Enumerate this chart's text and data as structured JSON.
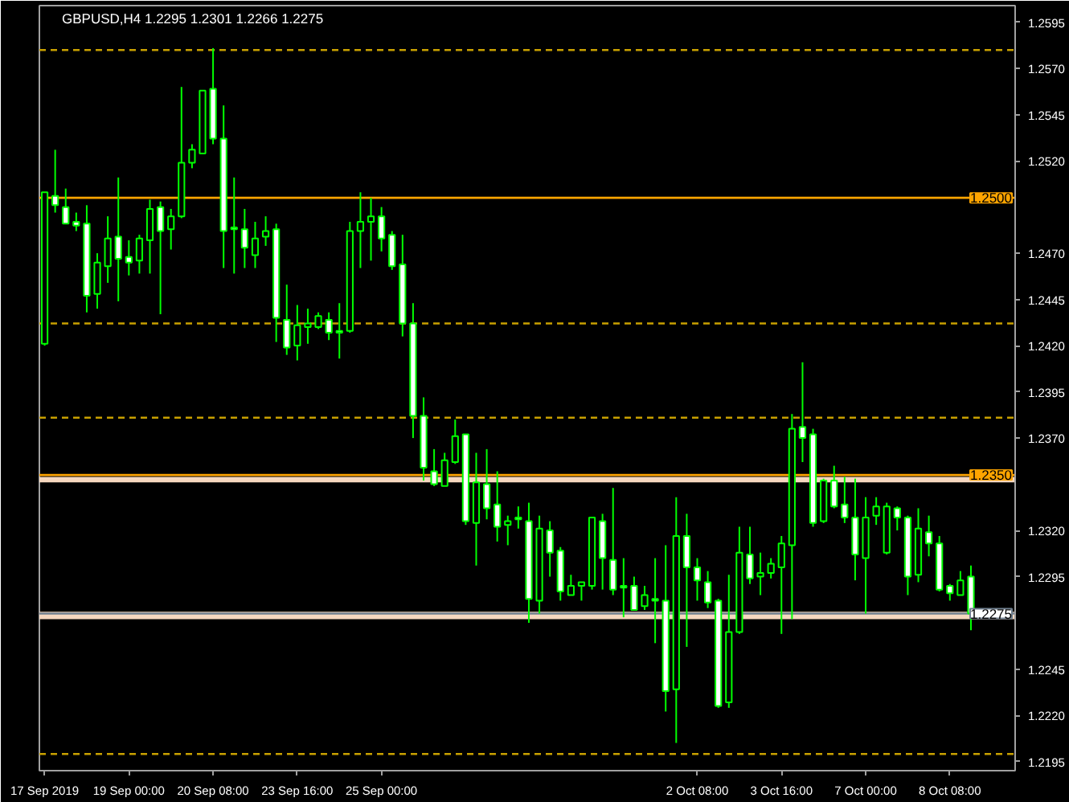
{
  "chart_data": {
    "type": "candlestick",
    "title": "GBPUSD,H4 1.2295 1.2301 1.2266 1.2275",
    "categories": [
      "17 Sep 2019",
      null,
      null,
      null,
      null,
      null,
      null,
      null,
      "19 Sep 00:00",
      null,
      null,
      null,
      null,
      null,
      null,
      null,
      "20 Sep 08:00",
      null,
      null,
      null,
      null,
      null,
      null,
      null,
      "23 Sep 16:00",
      null,
      null,
      null,
      null,
      null,
      null,
      null,
      "25 Sep 00:00",
      null,
      null,
      null,
      null,
      null,
      null,
      null,
      null,
      null,
      null,
      null,
      null,
      null,
      null,
      null,
      null,
      null,
      null,
      null,
      null,
      null,
      null,
      null,
      null,
      null,
      null,
      null,
      null,
      null,
      "2 Oct 08:00",
      null,
      null,
      null,
      null,
      null,
      null,
      null,
      "3 Oct 16:00",
      null,
      null,
      null,
      null,
      null,
      null,
      null,
      "7 Oct 00:00",
      null,
      null,
      null,
      null,
      null,
      null,
      null,
      "8 Oct 08:00",
      null,
      null
    ],
    "ohlc": [
      [
        1.2421,
        1.2503,
        1.242,
        1.2503
      ],
      [
        1.2501,
        1.2526,
        1.2492,
        1.2496
      ],
      [
        1.2495,
        1.2505,
        1.2486,
        1.2486
      ],
      [
        1.2487,
        1.2492,
        1.2482,
        1.2485
      ],
      [
        1.2486,
        1.2496,
        1.2438,
        1.2447
      ],
      [
        1.2448,
        1.247,
        1.244,
        1.2465
      ],
      [
        1.2463,
        1.249,
        1.2454,
        1.2478
      ],
      [
        1.2479,
        1.2511,
        1.2444,
        1.2467
      ],
      [
        1.2468,
        1.2477,
        1.2458,
        1.2465
      ],
      [
        1.2466,
        1.248,
        1.2459,
        1.2478
      ],
      [
        1.2477,
        1.2499,
        1.2459,
        1.2494
      ],
      [
        1.2495,
        1.2498,
        1.2437,
        1.2482
      ],
      [
        1.2483,
        1.2494,
        1.2472,
        1.249
      ],
      [
        1.249,
        1.256,
        1.2489,
        1.2519
      ],
      [
        1.2519,
        1.2529,
        1.2516,
        1.2526
      ],
      [
        1.2524,
        1.2558,
        1.2524,
        1.2558
      ],
      [
        1.2559,
        1.2581,
        1.2529,
        1.2532
      ],
      [
        1.2532,
        1.255,
        1.2462,
        1.2482
      ],
      [
        1.2484,
        1.2511,
        1.2459,
        1.2483
      ],
      [
        1.2483,
        1.2494,
        1.2462,
        1.2473
      ],
      [
        1.2469,
        1.2487,
        1.2462,
        1.2478
      ],
      [
        1.2479,
        1.249,
        1.2474,
        1.2482
      ],
      [
        1.2483,
        1.2486,
        1.2422,
        1.2435
      ],
      [
        1.2434,
        1.2453,
        1.2415,
        1.2419
      ],
      [
        1.242,
        1.2442,
        1.2412,
        1.2431
      ],
      [
        1.243,
        1.244,
        1.2421,
        1.2432
      ],
      [
        1.243,
        1.2438,
        1.2429,
        1.2436
      ],
      [
        1.2434,
        1.2438,
        1.2423,
        1.2427
      ],
      [
        1.2428,
        1.2443,
        1.2413,
        1.2427
      ],
      [
        1.2428,
        1.2487,
        1.2427,
        1.2482
      ],
      [
        1.2482,
        1.2503,
        1.2462,
        1.2487
      ],
      [
        1.2487,
        1.25,
        1.2466,
        1.249
      ],
      [
        1.249,
        1.2495,
        1.2471,
        1.2478
      ],
      [
        1.248,
        1.2482,
        1.2461,
        1.2463
      ],
      [
        1.2464,
        1.248,
        1.2425,
        1.2432
      ],
      [
        1.2432,
        1.2443,
        1.237,
        1.2382
      ],
      [
        1.2382,
        1.2392,
        1.2347,
        1.2354
      ],
      [
        1.2352,
        1.2364,
        1.2344,
        1.2345
      ],
      [
        1.2344,
        1.2362,
        1.2344,
        1.2358
      ],
      [
        1.2357,
        1.238,
        1.2356,
        1.2371
      ],
      [
        1.2372,
        1.2372,
        1.2323,
        1.2325
      ],
      [
        1.2324,
        1.2362,
        1.2301,
        1.2346
      ],
      [
        1.2345,
        1.2364,
        1.2326,
        1.2332
      ],
      [
        1.2334,
        1.2352,
        1.2314,
        1.2322
      ],
      [
        1.2323,
        1.2328,
        1.2312,
        1.2325
      ],
      [
        1.2327,
        1.2333,
        1.2321,
        1.2326
      ],
      [
        1.2325,
        1.2335,
        1.227,
        1.2283
      ],
      [
        1.2282,
        1.2328,
        1.2275,
        1.2321
      ],
      [
        1.232,
        1.2325,
        1.2295,
        1.2308
      ],
      [
        1.2309,
        1.2311,
        1.2282,
        1.2287
      ],
      [
        1.2285,
        1.2296,
        1.2285,
        1.229
      ],
      [
        1.229,
        1.2292,
        1.2282,
        1.2292
      ],
      [
        1.229,
        1.2327,
        1.2288,
        1.2327
      ],
      [
        1.2325,
        1.2329,
        1.2288,
        1.2305
      ],
      [
        1.2304,
        1.2343,
        1.2285,
        1.2288
      ],
      [
        1.229,
        1.2305,
        1.2273,
        1.2289
      ],
      [
        1.229,
        1.2295,
        1.2277,
        1.2277
      ],
      [
        1.2279,
        1.229,
        1.2277,
        1.2285
      ],
      [
        1.2283,
        1.2305,
        1.2259,
        1.2282
      ],
      [
        1.2282,
        1.2312,
        1.2222,
        1.2233
      ],
      [
        1.2234,
        1.2338,
        1.2205,
        1.2317
      ],
      [
        1.2317,
        1.2329,
        1.2257,
        1.23
      ],
      [
        1.23,
        1.2305,
        1.2282,
        1.2293
      ],
      [
        1.2292,
        1.2298,
        1.2278,
        1.2281
      ],
      [
        1.2282,
        1.2283,
        1.2224,
        1.2225
      ],
      [
        1.2227,
        1.2296,
        1.2224,
        1.2265
      ],
      [
        1.2265,
        1.2322,
        1.2264,
        1.2308
      ],
      [
        1.2307,
        1.2322,
        1.2291,
        1.2294
      ],
      [
        1.2295,
        1.2308,
        1.2285,
        1.2297
      ],
      [
        1.2297,
        1.2305,
        1.2294,
        1.2302
      ],
      [
        1.23,
        1.2317,
        1.2264,
        1.2313
      ],
      [
        1.2312,
        1.2383,
        1.2272,
        1.2375
      ],
      [
        1.2376,
        1.2411,
        1.2357,
        1.237
      ],
      [
        1.2372,
        1.2375,
        1.2322,
        1.2324
      ],
      [
        1.2325,
        1.2348,
        1.2324,
        1.2347
      ],
      [
        1.2347,
        1.2355,
        1.2332,
        1.2333
      ],
      [
        1.2334,
        1.2349,
        1.2324,
        1.2327
      ],
      [
        1.2327,
        1.2348,
        1.2293,
        1.2307
      ],
      [
        1.2305,
        1.2338,
        1.2275,
        1.2327
      ],
      [
        1.2328,
        1.2338,
        1.2323,
        1.2333
      ],
      [
        1.2308,
        1.2335,
        1.2307,
        1.2333
      ],
      [
        1.2332,
        1.2333,
        1.232,
        1.2327
      ],
      [
        1.2327,
        1.2328,
        1.2285,
        1.2295
      ],
      [
        1.2296,
        1.2332,
        1.2292,
        1.2321
      ],
      [
        1.2319,
        1.2328,
        1.2306,
        1.2313
      ],
      [
        1.2313,
        1.2317,
        1.2287,
        1.2288
      ],
      [
        1.229,
        1.2291,
        1.2282,
        1.2286
      ],
      [
        1.2285,
        1.2298,
        1.2285,
        1.2293
      ],
      [
        1.2295,
        1.2301,
        1.2266,
        1.2275
      ]
    ],
    "color": "#00ff00",
    "ylim": [
      1.219,
      1.2604
    ],
    "yticks": [
      {
        "value": 1.2595,
        "label": "1.2595"
      },
      {
        "value": 1.257,
        "label": "1.2570"
      },
      {
        "value": 1.2545,
        "label": "1.2545"
      },
      {
        "value": 1.252,
        "label": "1.2520"
      },
      {
        "value": 1.247,
        "label": "1.2470"
      },
      {
        "value": 1.2445,
        "label": "1.2445"
      },
      {
        "value": 1.242,
        "label": "1.2420"
      },
      {
        "value": 1.2395,
        "label": "1.2395"
      },
      {
        "value": 1.237,
        "label": "1.2370"
      },
      {
        "value": 1.232,
        "label": "1.2320"
      },
      {
        "value": 1.2295,
        "label": "1.2295"
      },
      {
        "value": 1.2245,
        "label": "1.2245"
      },
      {
        "value": 1.222,
        "label": "1.2220"
      },
      {
        "value": 1.2195,
        "label": "1.2195"
      }
    ],
    "grid": false,
    "ref_lines": [
      {
        "axis": "y",
        "value": 1.258,
        "color": "#c8a000",
        "line_style": "dashed"
      },
      {
        "axis": "y",
        "value": 1.2432,
        "color": "#c8a000",
        "line_style": "dashed"
      },
      {
        "axis": "y",
        "value": 1.2381,
        "color": "#c8a000",
        "line_style": "dashed"
      },
      {
        "axis": "y",
        "value": 1.2199,
        "color": "#c8a000",
        "line_style": "dashed"
      },
      {
        "axis": "y",
        "value": 1.25,
        "label": "1.2500",
        "color": "#ffa500",
        "line_style": "solid"
      },
      {
        "axis": "y",
        "value": 1.235,
        "label": "1.2350",
        "color": "#ffa500",
        "line_style": "solid"
      },
      {
        "axis": "y",
        "value": 1.2275,
        "label": "1.2275",
        "color": "#708090",
        "line_style": "solid"
      }
    ],
    "bands": [
      {
        "axis": "y",
        "from": 1.2346,
        "to": 1.2349,
        "color": "#f5d7bf"
      },
      {
        "axis": "y",
        "from": 1.2272,
        "to": 1.2276,
        "color": "#f5d7bf"
      }
    ]
  }
}
